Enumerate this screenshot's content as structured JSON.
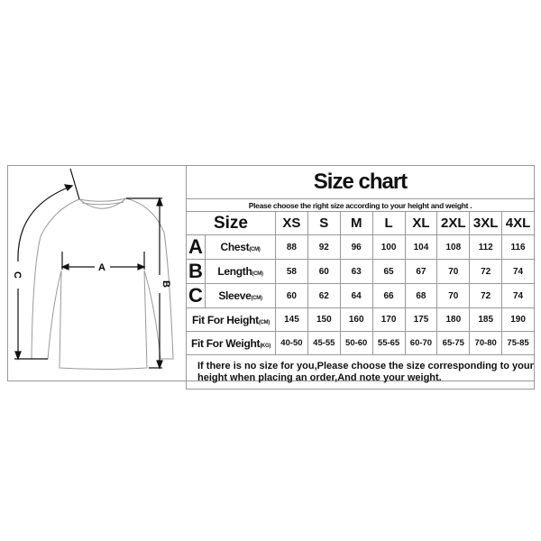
{
  "title": "Size chart",
  "subtitle": "Please choose the right size according to your height and weight .",
  "header": {
    "label": "Size",
    "sizes": [
      "XS",
      "S",
      "M",
      "L",
      "XL",
      "2XL",
      "3XL",
      "4XL"
    ]
  },
  "rows": [
    {
      "letter": "A",
      "label": "Chest",
      "unit": "(CM)",
      "values": [
        "88",
        "92",
        "96",
        "100",
        "104",
        "108",
        "112",
        "116"
      ]
    },
    {
      "letter": "B",
      "label": "Length",
      "unit": "(CM)",
      "values": [
        "58",
        "60",
        "63",
        "65",
        "67",
        "70",
        "72",
        "74"
      ]
    },
    {
      "letter": "C",
      "label": "Sleeve",
      "unit": "(CM)",
      "values": [
        "60",
        "62",
        "64",
        "66",
        "68",
        "70",
        "72",
        "74"
      ]
    },
    {
      "label": "Fit For Height",
      "unit": "(CM)",
      "values": [
        "145",
        "150",
        "160",
        "170",
        "175",
        "180",
        "185",
        "190"
      ]
    },
    {
      "label": "Fit For Weight",
      "unit": "(KG)",
      "values": [
        "40-50",
        "45-55",
        "50-60",
        "55-65",
        "60-70",
        "65-75",
        "70-80",
        "75-85"
      ]
    }
  ],
  "note": "If there is no size for you,Please choose the size corresponding to your height when placing an order,And note your weight.",
  "diagram": {
    "a": "A",
    "b": "B",
    "c": "C"
  }
}
